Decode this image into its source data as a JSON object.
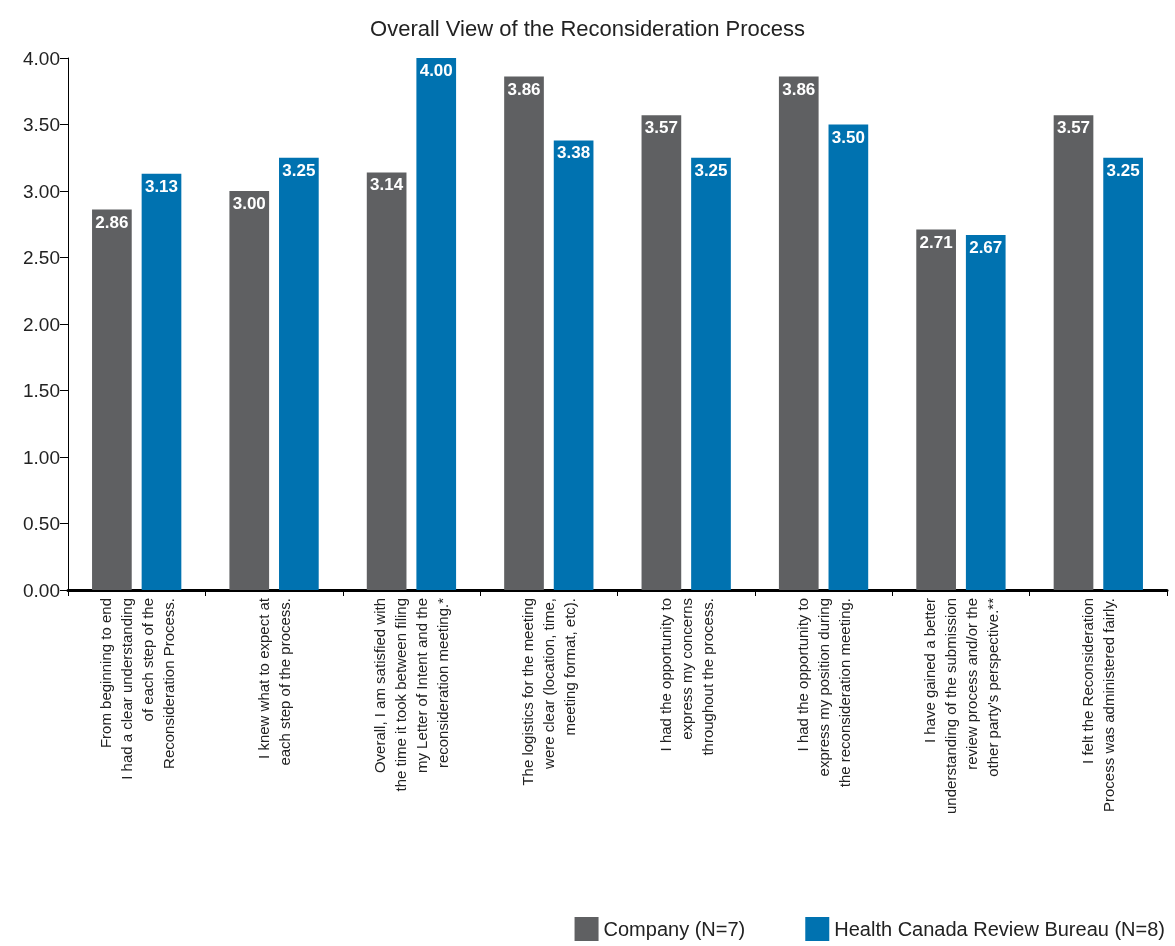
{
  "chart_data": {
    "type": "bar",
    "title": "Overall View of the Reconsideration Process",
    "categories": [
      "From beginning to end\nI had a clear understanding\nof each step of the\nReconsideration Process.",
      "I knew what to expect at\neach step of the process.",
      "Overall, I am satisfied with\nthe time it took between filing\nmy Letter of Intent and the\nreconsideration meeting.*",
      "The logistics for the meeting\nwere clear (location, time,\nmeeting format, etc).",
      "I had the opportunity to\nexpress my concerns\nthroughout the process.",
      "I had the opportunity to\nexpress my position during\nthe reconsideration meeting.",
      "I have gained a better\nunderstanding of the submission\nreview process and/or the\nother party's perspective.**",
      "I felt the Reconsideration\nProcess was administered fairly."
    ],
    "series": [
      {
        "name": "Company (N=7)",
        "color": "#5f6062",
        "values": [
          2.86,
          3.0,
          3.14,
          3.86,
          3.57,
          3.86,
          2.71,
          3.57
        ],
        "value_labels": [
          "2.86",
          "3.00",
          "3.14",
          "3.86",
          "3.57",
          "3.86",
          "2.71",
          "3.57"
        ]
      },
      {
        "name": "Health Canada Review Bureau (N=8)",
        "color": "#0072b0",
        "values": [
          3.13,
          3.25,
          4.0,
          3.38,
          3.25,
          3.5,
          2.67,
          3.25
        ],
        "value_labels": [
          "3.13",
          "3.25",
          "4.00",
          "3.38",
          "3.25",
          "3.50",
          "2.67",
          "3.25"
        ]
      }
    ],
    "ylim": [
      0,
      4
    ],
    "yticks": [
      {
        "value": 0,
        "label": "0.00"
      },
      {
        "value": 0.5,
        "label": "0.50"
      },
      {
        "value": 1,
        "label": "1.00"
      },
      {
        "value": 1.5,
        "label": "1.50"
      },
      {
        "value": 2,
        "label": "2.00"
      },
      {
        "value": 2.5,
        "label": "2.50"
      },
      {
        "value": 3,
        "label": "3.00"
      },
      {
        "value": 3.5,
        "label": "3.50"
      },
      {
        "value": 4,
        "label": "4.00"
      }
    ],
    "grid": false,
    "legend": "bottom right"
  }
}
